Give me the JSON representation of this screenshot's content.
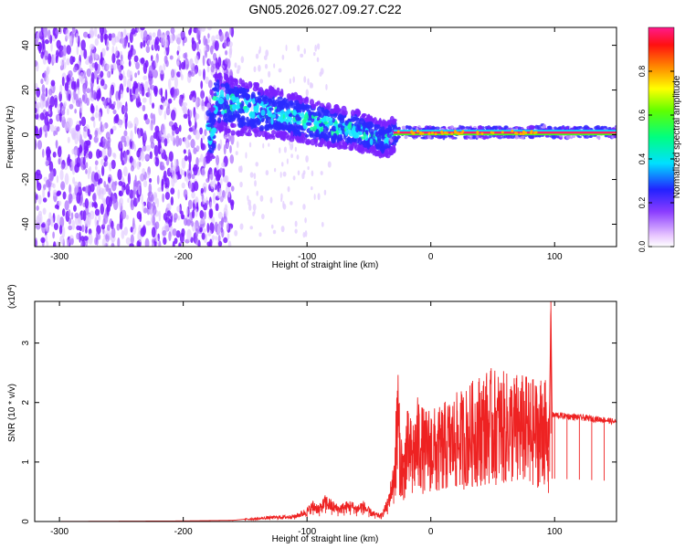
{
  "title": "GN05.2026.027.09.27.C22",
  "chart_data": [
    {
      "type": "heatmap",
      "name": "spectrogram",
      "xlabel": "Height of straight line (km)",
      "ylabel": "Frequency (Hz)",
      "xlim": [
        -320,
        150
      ],
      "ylim": [
        -50,
        48
      ],
      "xticks": [
        -300,
        -200,
        -100,
        0,
        100
      ],
      "yticks": [
        -40,
        -20,
        0,
        20,
        40
      ],
      "colorbar": {
        "label": "Normalized spectral amplitude",
        "range": [
          0,
          1
        ],
        "ticks": [
          "0.0",
          "0.2",
          "0.4",
          "0.6",
          "0.8"
        ],
        "tick_values": [
          0.0,
          0.2,
          0.4,
          0.6,
          0.8
        ]
      },
      "ridge": {
        "x": [
          -175,
          -160,
          -140,
          -120,
          -100,
          -80,
          -60,
          -45,
          -35,
          -30,
          -25,
          -10,
          0,
          20,
          50,
          80,
          90,
          95,
          150
        ],
        "freq": [
          15,
          13,
          11,
          9,
          6,
          4,
          2,
          -1,
          -2,
          0,
          1,
          1,
          1,
          1,
          1,
          1,
          2,
          1,
          1
        ]
      },
      "noise_region_x": [
        -320,
        -160
      ],
      "carrier_line_freq": 1
    },
    {
      "type": "line",
      "name": "snr",
      "xlabel": "Height of straight line (km)",
      "ylabel": "SNR (10 * v/v)",
      "scale_label": "(x10",
      "scale_exponent": "4",
      "xlim": [
        -320,
        150
      ],
      "ylim": [
        0,
        3.7
      ],
      "xticks": [
        -300,
        -200,
        -100,
        0,
        100
      ],
      "yticks": [
        0,
        1,
        2,
        3
      ],
      "color": "#ee2222",
      "series": [
        {
          "name": "SNR",
          "x": [
            -320,
            -200,
            -160,
            -150,
            -140,
            -130,
            -120,
            -110,
            -100,
            -95,
            -90,
            -85,
            -80,
            -75,
            -70,
            -65,
            -60,
            -55,
            -50,
            -45,
            -40,
            -35,
            -30,
            -28,
            -27,
            -25,
            -22,
            -20,
            -15,
            -10,
            -5,
            0,
            5,
            10,
            20,
            30,
            40,
            50,
            60,
            70,
            80,
            88,
            90,
            92,
            95,
            96,
            97,
            98,
            100,
            110,
            120,
            130,
            140,
            150
          ],
          "y": [
            0.0,
            0.01,
            0.02,
            0.04,
            0.05,
            0.07,
            0.08,
            0.09,
            0.18,
            0.28,
            0.22,
            0.35,
            0.28,
            0.22,
            0.25,
            0.28,
            0.22,
            0.28,
            0.18,
            0.12,
            0.1,
            0.3,
            0.75,
            1.4,
            2.2,
            1.2,
            0.9,
            1.35,
            1.2,
            1.5,
            1.3,
            1.4,
            1.3,
            1.4,
            1.5,
            1.6,
            1.75,
            1.8,
            1.75,
            1.75,
            1.7,
            1.65,
            1.9,
            1.75,
            1.2,
            2.1,
            3.7,
            1.8,
            1.8,
            1.78,
            1.76,
            1.74,
            1.72,
            1.68
          ]
        }
      ]
    }
  ]
}
